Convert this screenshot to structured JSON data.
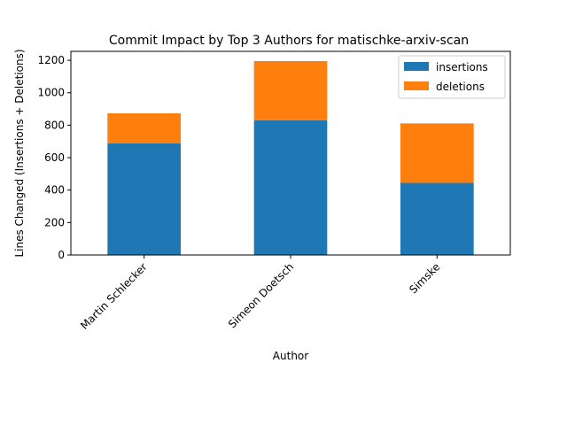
{
  "chart_data": {
    "type": "bar",
    "stacked": true,
    "title": "Commit Impact by Top 3 Authors for matischke-arxiv-scan",
    "xlabel": "Author",
    "ylabel": "Lines Changed (Insertions + Deletions)",
    "categories": [
      "Martin Schlecker",
      "Simeon Doetsch",
      "Simske"
    ],
    "series": [
      {
        "name": "insertions",
        "values": [
          688,
          830,
          445
        ],
        "color": "#1f77b4"
      },
      {
        "name": "deletions",
        "values": [
          185,
          365,
          366
        ],
        "color": "#ff7f0e"
      }
    ],
    "ylim": [
      0,
      1255
    ],
    "yticks": [
      0,
      200,
      400,
      600,
      800,
      1000,
      1200
    ],
    "grid": false,
    "legend_position": "top-right"
  }
}
